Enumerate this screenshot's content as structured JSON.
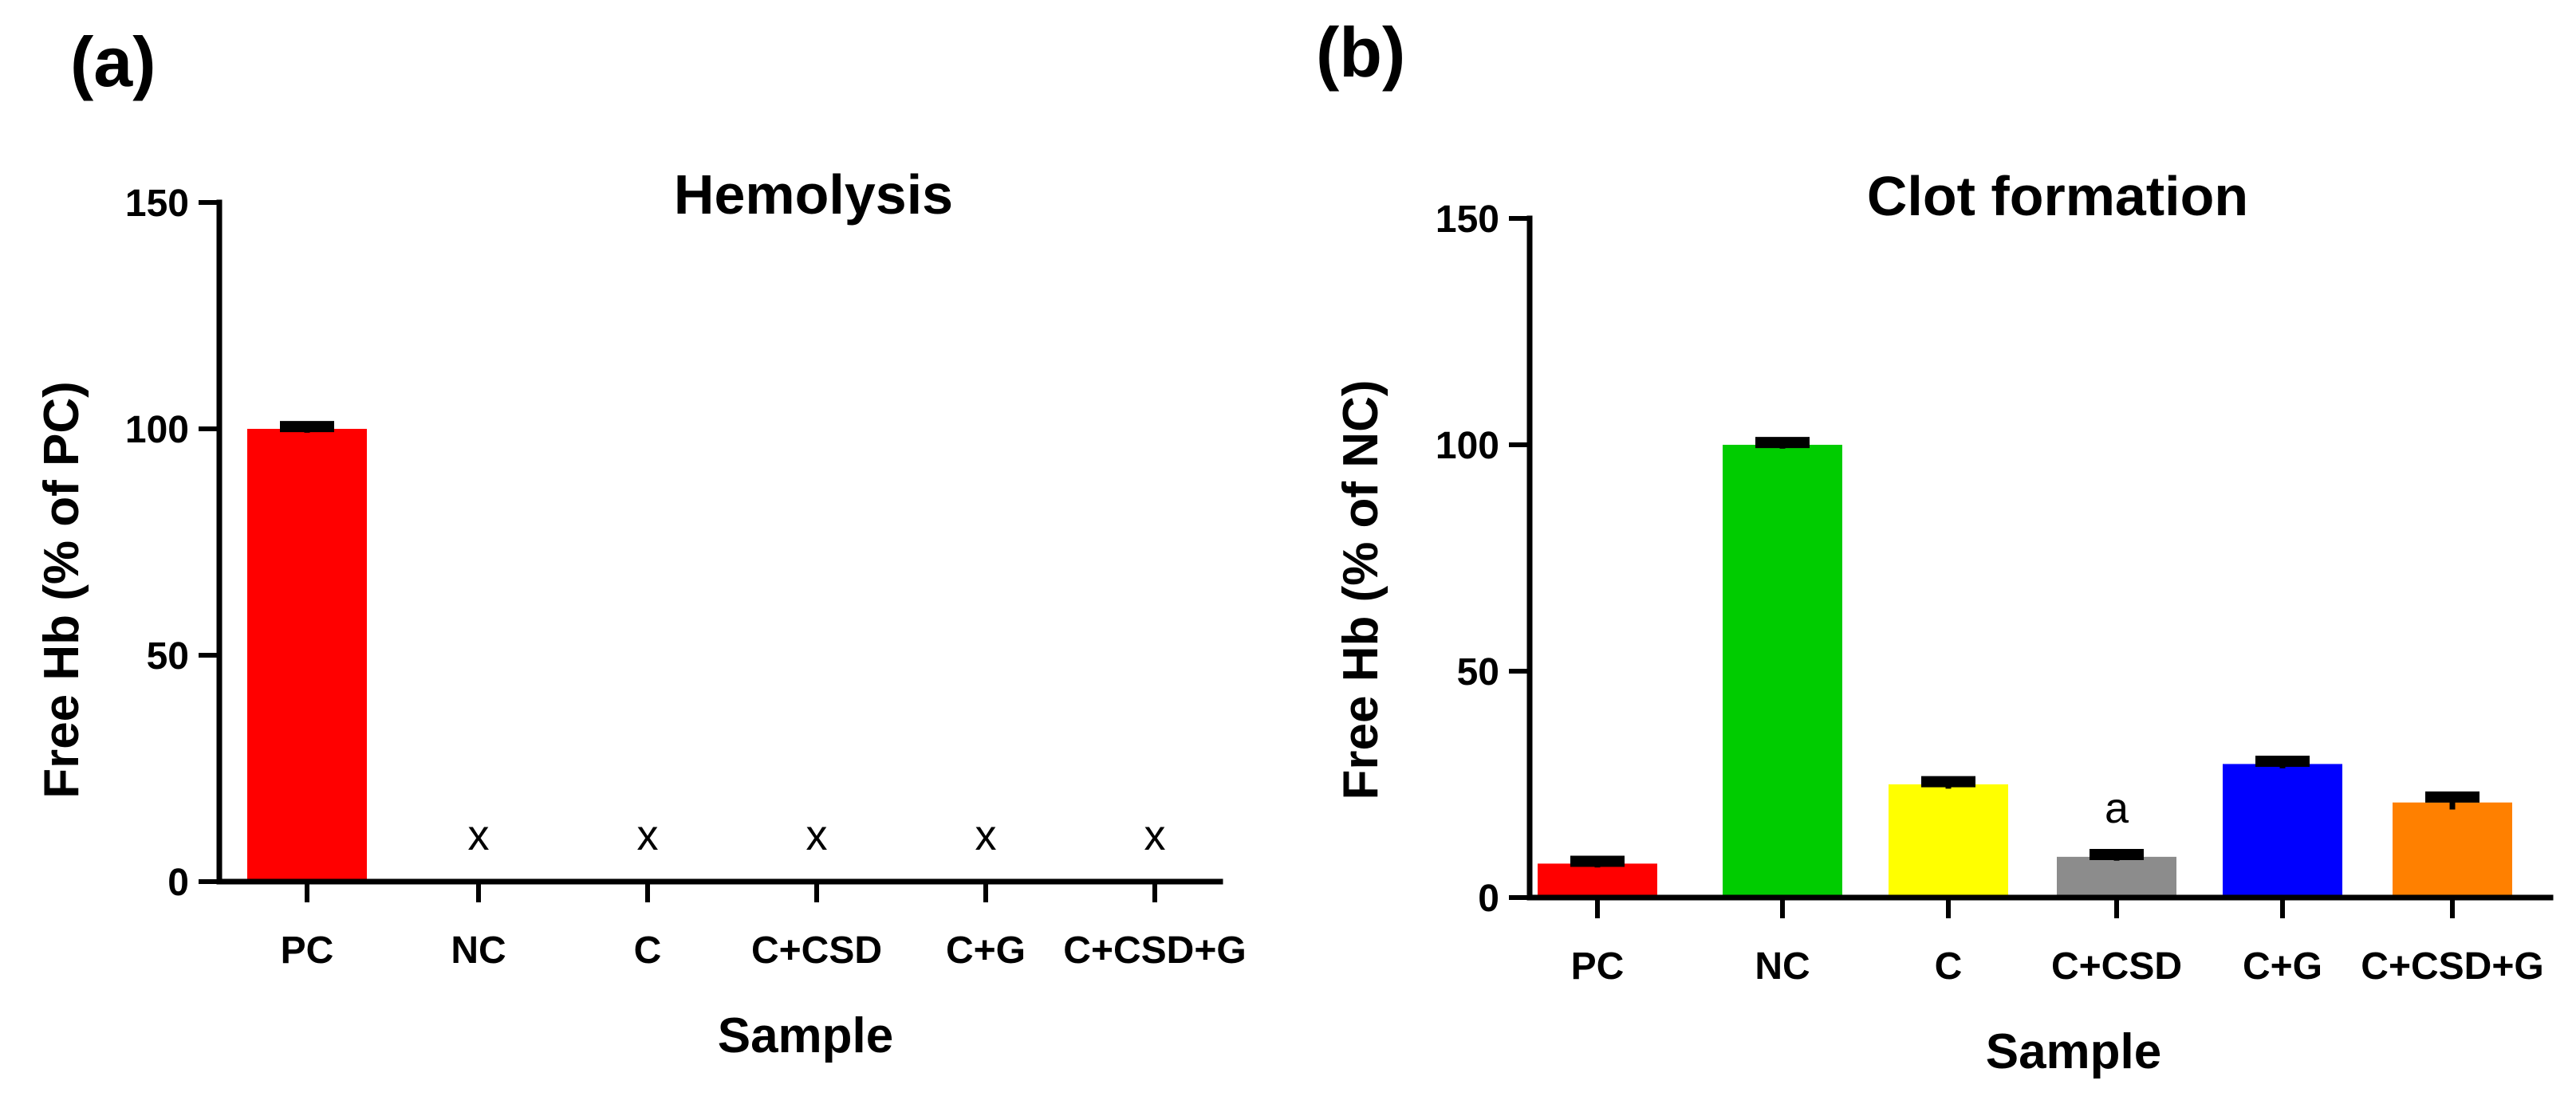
{
  "panels": [
    "(a)",
    "(b)"
  ],
  "chart_data": [
    {
      "type": "bar",
      "panel": "(a)",
      "title": "Hemolysis",
      "xlabel": "Sample",
      "ylabel": "Free Hb (% of PC)",
      "ylim": [
        0,
        150
      ],
      "yticks": [
        0,
        50,
        100,
        150
      ],
      "categories": [
        "PC",
        "NC",
        "C",
        "C+CSD",
        "C+G",
        "C+CSD+G"
      ],
      "values": [
        100,
        0,
        0,
        0,
        0,
        0
      ],
      "errors": [
        0.5,
        0,
        0,
        0,
        0,
        0
      ],
      "colors": [
        "#ff0000",
        "#ff0000",
        "#ff0000",
        "#ff0000",
        "#ff0000",
        "#ff0000"
      ],
      "annotations": [
        "",
        "x",
        "x",
        "x",
        "x",
        "x"
      ]
    },
    {
      "type": "bar",
      "panel": "(b)",
      "title": "Clot formation",
      "xlabel": "Sample",
      "ylabel": "Free Hb (% of NC)",
      "ylim": [
        0,
        150
      ],
      "yticks": [
        0,
        50,
        100,
        150
      ],
      "categories": [
        "PC",
        "NC",
        "C",
        "C+CSD",
        "C+G",
        "C+CSD+G"
      ],
      "values": [
        7.5,
        100,
        25,
        9,
        29.5,
        21
      ],
      "errors": [
        0.5,
        0.5,
        0.6,
        0.5,
        0.6,
        1.2
      ],
      "colors": [
        "#ff0000",
        "#00cc00",
        "#ffff00",
        "#8c8c8c",
        "#0000ff",
        "#ff8000"
      ],
      "annotations": [
        "",
        "",
        "",
        "a",
        "",
        ""
      ]
    }
  ]
}
